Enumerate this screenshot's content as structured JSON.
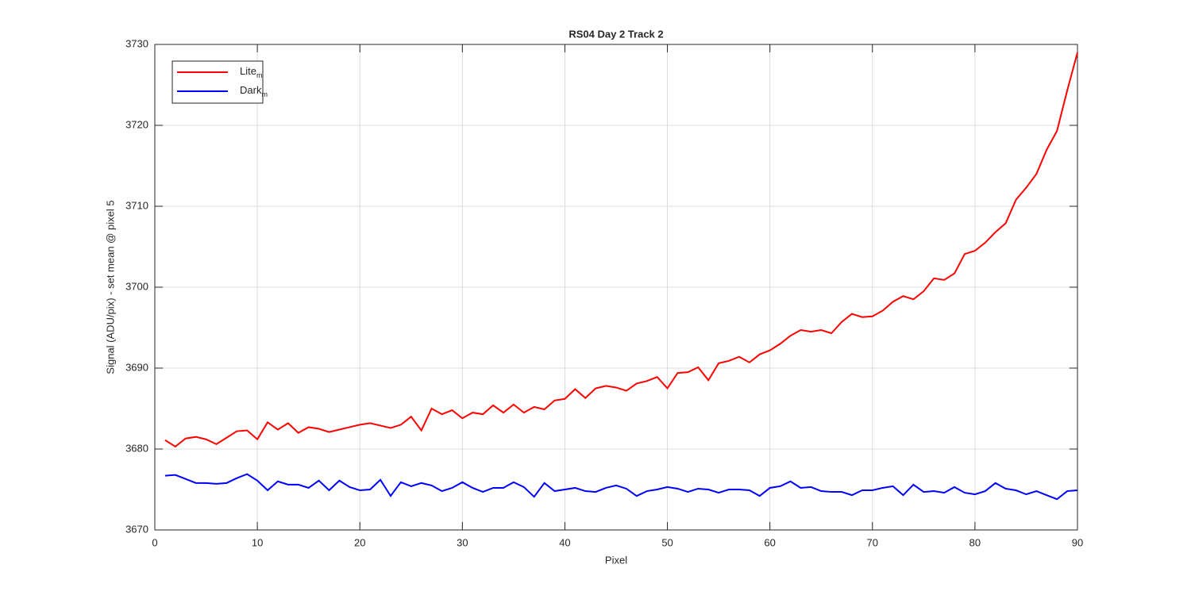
{
  "chart_data": {
    "type": "line",
    "title": "RS04 Day 2 Track 2",
    "x_label": "Pixel",
    "y_label": "Signal (ADU/pix) - set mean @ pixel 5",
    "x": [
      1,
      2,
      3,
      4,
      5,
      6,
      7,
      8,
      9,
      10,
      11,
      12,
      13,
      14,
      15,
      16,
      17,
      18,
      19,
      20,
      21,
      22,
      23,
      24,
      25,
      26,
      27,
      28,
      29,
      30,
      31,
      32,
      33,
      34,
      35,
      36,
      37,
      38,
      39,
      40,
      41,
      42,
      43,
      44,
      45,
      46,
      47,
      48,
      49,
      50,
      51,
      52,
      53,
      54,
      55,
      56,
      57,
      58,
      59,
      60,
      61,
      62,
      63,
      64,
      65,
      66,
      67,
      68,
      69,
      70,
      71,
      72,
      73,
      74,
      75,
      76,
      77,
      78,
      79,
      80,
      81,
      82,
      83,
      84,
      85,
      86,
      87,
      88,
      89,
      90
    ],
    "series": [
      {
        "name": "Lite",
        "subscript": "m",
        "color": "#ff0000",
        "values": [
          3681.1,
          3680.3,
          3681.3,
          3681.5,
          3681.2,
          3680.6,
          3681.4,
          3682.2,
          3682.3,
          3681.2,
          3683.3,
          3682.4,
          3683.2,
          3682.0,
          3682.7,
          3682.5,
          3682.1,
          3682.4,
          3682.7,
          3683.0,
          3683.2,
          3682.9,
          3682.6,
          3683.0,
          3684.0,
          3682.3,
          3685.0,
          3684.3,
          3684.8,
          3683.8,
          3684.5,
          3684.3,
          3685.4,
          3684.5,
          3685.5,
          3684.5,
          3685.2,
          3684.9,
          3686.0,
          3686.2,
          3687.4,
          3686.3,
          3687.5,
          3687.8,
          3687.6,
          3687.2,
          3688.1,
          3688.4,
          3688.9,
          3687.5,
          3689.4,
          3689.5,
          3690.1,
          3688.5,
          3690.6,
          3690.9,
          3691.4,
          3690.7,
          3691.7,
          3692.2,
          3693.0,
          3694.0,
          3694.7,
          3694.5,
          3694.7,
          3694.3,
          3695.7,
          3696.7,
          3696.3,
          3696.4,
          3697.1,
          3698.2,
          3698.9,
          3698.5,
          3699.5,
          3701.1,
          3700.9,
          3701.7,
          3704.1,
          3704.5,
          3705.5,
          3706.8,
          3707.9,
          3710.8,
          3712.3,
          3714.0,
          3717.0,
          3719.3,
          3724.3,
          3729.0
        ]
      },
      {
        "name": "Dark",
        "subscript": "m",
        "color": "#0000ff",
        "values": [
          3676.7,
          3676.8,
          3676.3,
          3675.8,
          3675.8,
          3675.7,
          3675.8,
          3676.4,
          3676.9,
          3676.1,
          3674.9,
          3676.0,
          3675.6,
          3675.6,
          3675.2,
          3676.1,
          3674.9,
          3676.1,
          3675.3,
          3674.9,
          3675.0,
          3676.2,
          3674.2,
          3675.9,
          3675.4,
          3675.8,
          3675.5,
          3674.8,
          3675.2,
          3675.9,
          3675.2,
          3674.7,
          3675.2,
          3675.2,
          3675.9,
          3675.3,
          3674.1,
          3675.8,
          3674.8,
          3675.0,
          3675.2,
          3674.8,
          3674.7,
          3675.2,
          3675.5,
          3675.1,
          3674.2,
          3674.8,
          3675.0,
          3675.3,
          3675.1,
          3674.7,
          3675.1,
          3675.0,
          3674.6,
          3675.0,
          3675.0,
          3674.9,
          3674.2,
          3675.2,
          3675.4,
          3676.0,
          3675.2,
          3675.3,
          3674.8,
          3674.7,
          3674.7,
          3674.3,
          3674.9,
          3674.9,
          3675.2,
          3675.4,
          3674.3,
          3675.6,
          3674.7,
          3674.8,
          3674.6,
          3675.3,
          3674.6,
          3674.4,
          3674.8,
          3675.8,
          3675.1,
          3674.9,
          3674.4,
          3674.8,
          3674.3,
          3673.8,
          3674.8,
          3674.9
        ]
      }
    ],
    "xlim": [
      0,
      90
    ],
    "xticks": [
      0,
      10,
      20,
      30,
      40,
      50,
      60,
      70,
      80,
      90
    ],
    "ylim": [
      3670,
      3730
    ],
    "yticks": [
      3670,
      3680,
      3690,
      3700,
      3710,
      3720,
      3730
    ],
    "grid": true,
    "legend": "upper-left"
  }
}
